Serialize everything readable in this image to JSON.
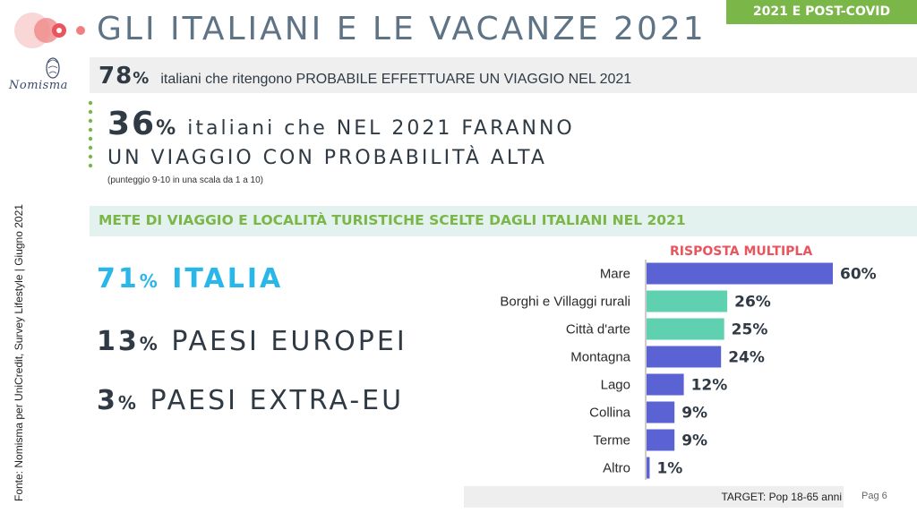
{
  "header": {
    "title": "GLI ITALIANI E LE VACANZE 2021",
    "badge": "2021 E POST-COVID",
    "brand": "Nomisma"
  },
  "stat1": {
    "value": "78",
    "pct": "%",
    "text": "italiani che ritengono PROBABILE EFFETTUARE UN VIAGGIO NEL 2021"
  },
  "stat2": {
    "value": "36",
    "pct": "%",
    "line1": "italiani che NEL 2021 FARANNO",
    "line2": "UN VIAGGIO CON PROBABILITÀ ALTA",
    "note": "(punteggio 9-10 in una scala da 1 a 10)"
  },
  "section": {
    "title": "METE DI VIAGGIO E LOCALITÀ TURISTICHE SCELTE DAGLI ITALIANI NEL 2021"
  },
  "destinations": [
    {
      "value": "71",
      "pct": "%",
      "label": "ITALIA"
    },
    {
      "value": "13",
      "pct": "%",
      "label": "PAESI EUROPEI"
    },
    {
      "value": "3",
      "pct": "%",
      "label": "PAESI EXTRA-EU"
    }
  ],
  "source": "Fonte: Nomisma per UniCredit, Survey Lifestyle | Giugno 2021",
  "footer": {
    "target": "TARGET: Pop 18-65 anni",
    "page": "Pag 6"
  },
  "colors": {
    "blue": "#5b63d4",
    "teal": "#5fd1b0",
    "green": "#7ab648",
    "cyan": "#29b6e8",
    "coral": "#ef8a8a"
  },
  "chart_data": {
    "type": "bar",
    "orientation": "horizontal",
    "note": "RISPOSTA MULTIPLA",
    "categories": [
      "Mare",
      "Borghi e Villaggi rurali",
      "Città d'arte",
      "Montagna",
      "Lago",
      "Collina",
      "Terme",
      "Altro"
    ],
    "values": [
      60,
      26,
      25,
      24,
      12,
      9,
      9,
      1
    ],
    "value_labels": [
      "60%",
      "26%",
      "25%",
      "24%",
      "12%",
      "9%",
      "9%",
      "1%"
    ],
    "highlight": [
      false,
      true,
      true,
      false,
      false,
      false,
      false,
      false
    ],
    "xlim": [
      0,
      60
    ]
  }
}
